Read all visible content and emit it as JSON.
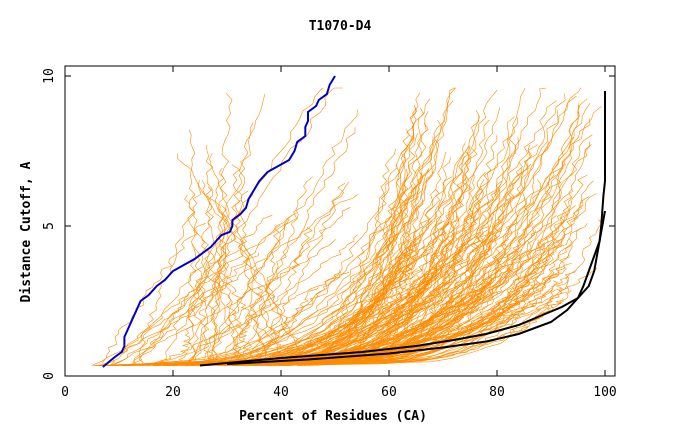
{
  "chart_data": {
    "type": "line",
    "title": "T1070-D4",
    "xlabel": "Percent of Residues (CA)",
    "ylabel": "Distance Cutoff, A",
    "xlim": [
      0,
      100
    ],
    "ylim": [
      0,
      10
    ],
    "x_ticks": [
      0,
      20,
      40,
      60,
      80,
      100
    ],
    "y_ticks": [
      0,
      5,
      10
    ],
    "grid": false,
    "colors": {
      "background_series": "#ff8c00",
      "highlight_blue": "#0000cc",
      "highlight_black": "#000000",
      "axis": "#000000"
    },
    "series": [
      {
        "color": "#0000cc",
        "x": [
          7,
          9,
          10.5,
          11,
          11,
          12,
          13,
          13.5,
          14,
          15.5,
          17,
          18.5,
          20,
          22,
          24,
          25.5,
          27,
          28,
          29,
          30.5,
          31,
          31,
          32.5,
          33.5,
          34,
          35,
          36,
          37.5,
          39.5,
          41.5,
          42.5,
          43,
          44.5,
          44.5,
          45,
          45,
          46.5,
          47,
          48.5,
          49,
          50
        ],
        "y": [
          0.3,
          0.6,
          0.8,
          1.0,
          1.3,
          1.7,
          2.1,
          2.3,
          2.5,
          2.7,
          3.0,
          3.2,
          3.5,
          3.7,
          3.9,
          4.1,
          4.3,
          4.5,
          4.7,
          4.8,
          5.0,
          5.2,
          5.4,
          5.6,
          5.9,
          6.2,
          6.5,
          6.8,
          7.0,
          7.2,
          7.5,
          7.8,
          8.0,
          8.3,
          8.5,
          8.8,
          9.0,
          9.2,
          9.4,
          9.7,
          10.0
        ]
      },
      {
        "color": "#000000",
        "x": [
          25,
          40,
          55,
          65,
          72,
          78,
          84,
          88,
          92,
          95,
          97,
          98,
          98.5,
          99,
          99.3,
          99.5,
          99.7,
          100,
          100,
          100,
          100,
          100,
          100
        ],
        "y": [
          0.35,
          0.6,
          0.8,
          1.0,
          1.2,
          1.4,
          1.7,
          2.0,
          2.3,
          2.6,
          3.0,
          3.5,
          4.0,
          4.5,
          5.0,
          5.5,
          6.0,
          6.5,
          7.0,
          7.5,
          8.0,
          9.0,
          9.5
        ]
      },
      {
        "color": "#000000",
        "x": [
          30,
          45,
          60,
          70,
          78,
          84,
          90,
          93,
          95,
          96,
          97,
          98,
          99,
          99.5,
          100
        ],
        "y": [
          0.4,
          0.55,
          0.75,
          0.95,
          1.15,
          1.4,
          1.8,
          2.2,
          2.6,
          3.0,
          3.5,
          4.0,
          4.5,
          5.0,
          5.5
        ]
      }
    ]
  }
}
